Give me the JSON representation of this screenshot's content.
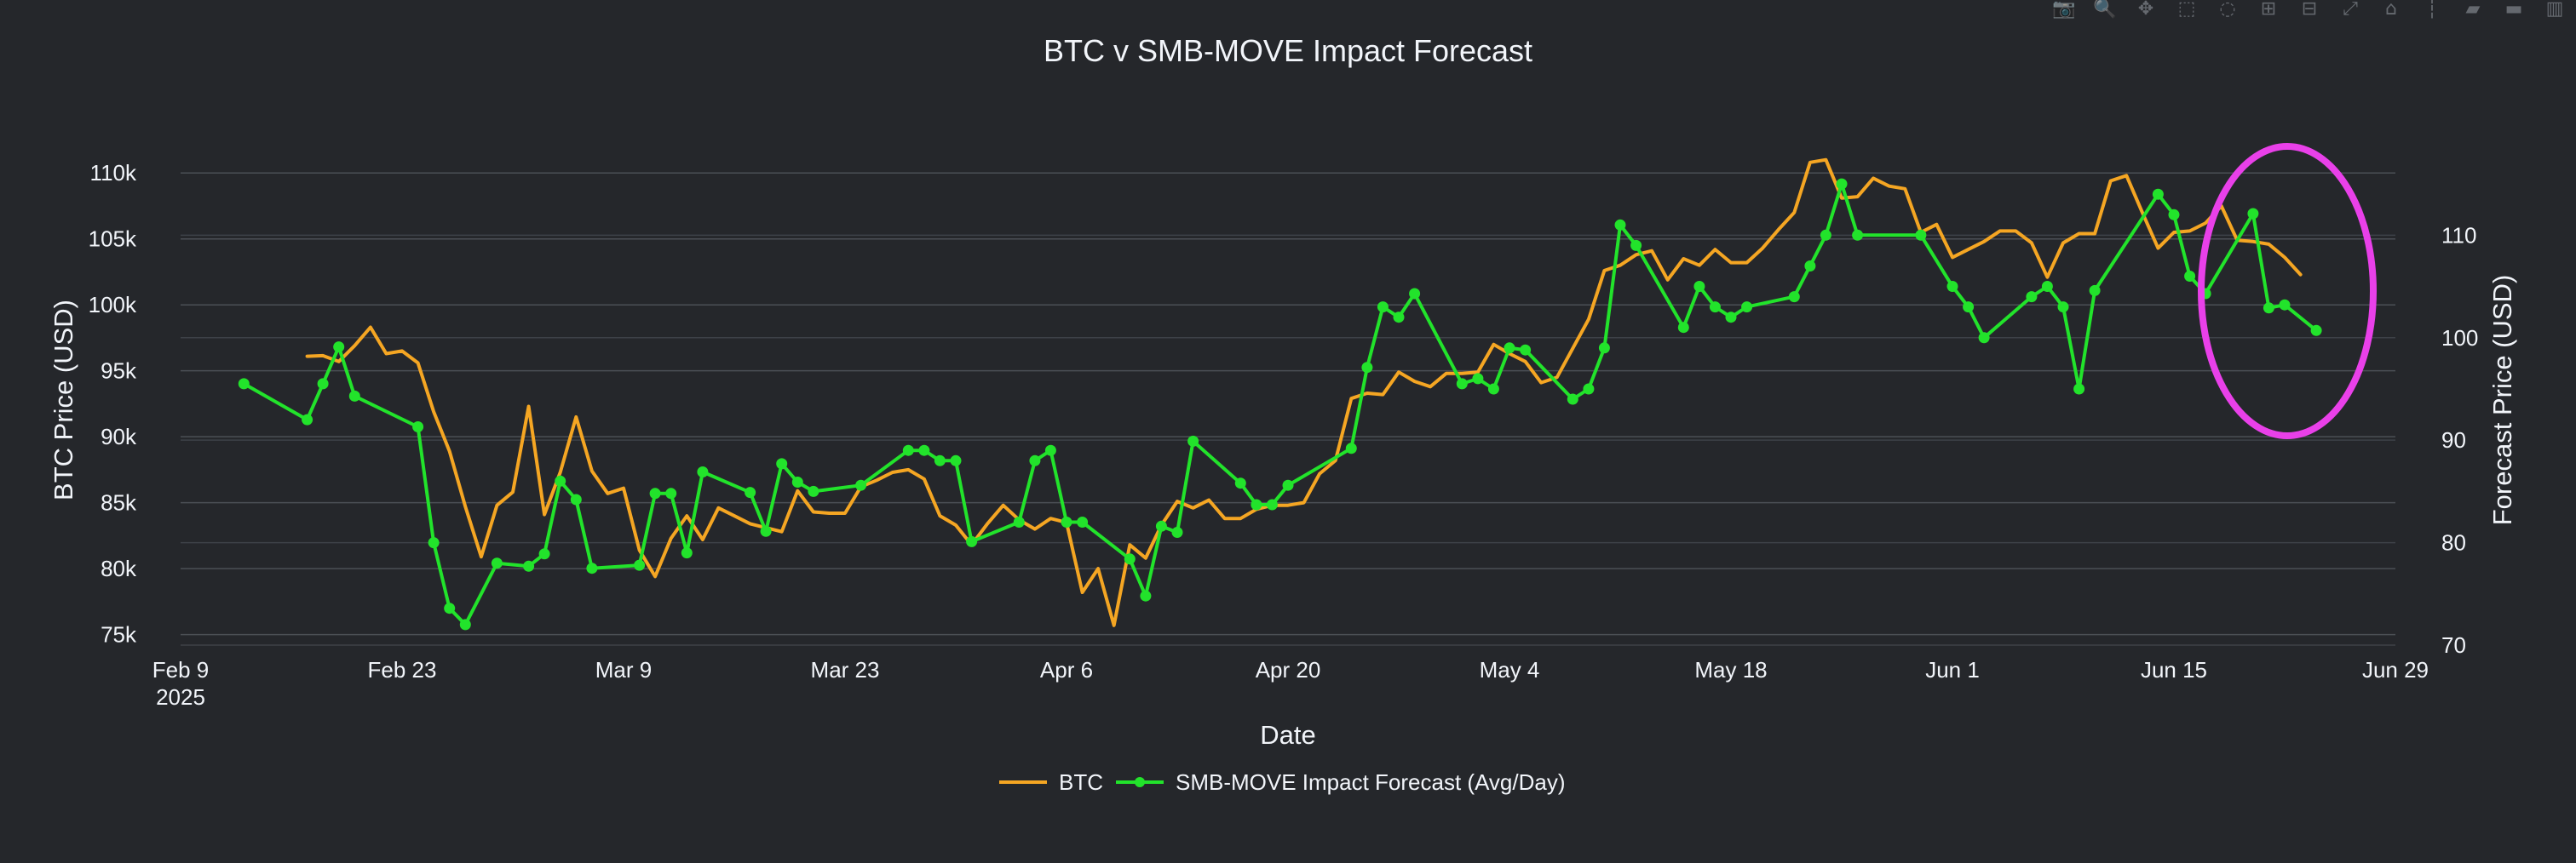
{
  "chart_data": {
    "type": "line",
    "title": "BTC v SMB-MOVE Impact Forecast",
    "xlabel": "Date",
    "ylabel_left": "BTC Price (USD)",
    "ylabel_right": "Forecast Price (USD)",
    "x_range": [
      "2025-02-09",
      "2025-06-29"
    ],
    "x_ticks": [
      {
        "date": "2025-02-09",
        "label": "Feb 9",
        "sublabel": "2025"
      },
      {
        "date": "2025-02-23",
        "label": "Feb 23"
      },
      {
        "date": "2025-03-09",
        "label": "Mar 9"
      },
      {
        "date": "2025-03-23",
        "label": "Mar 23"
      },
      {
        "date": "2025-04-06",
        "label": "Apr 6"
      },
      {
        "date": "2025-04-20",
        "label": "Apr 20"
      },
      {
        "date": "2025-05-04",
        "label": "May 4"
      },
      {
        "date": "2025-05-18",
        "label": "May 18"
      },
      {
        "date": "2025-06-01",
        "label": "Jun 1"
      },
      {
        "date": "2025-06-15",
        "label": "Jun 15"
      },
      {
        "date": "2025-06-29",
        "label": "Jun 29"
      }
    ],
    "y_left_range": [
      74200,
      111500
    ],
    "y_left_ticks": [
      {
        "value": 75000,
        "label": "75k"
      },
      {
        "value": 80000,
        "label": "80k"
      },
      {
        "value": 85000,
        "label": "85k"
      },
      {
        "value": 90000,
        "label": "90k"
      },
      {
        "value": 95000,
        "label": "95k"
      },
      {
        "value": 100000,
        "label": "100k"
      },
      {
        "value": 105000,
        "label": "105k"
      },
      {
        "value": 110000,
        "label": "110k"
      }
    ],
    "y_right_range": [
      70,
      118
    ],
    "y_right_ticks": [
      {
        "value": 70,
        "label": "70"
      },
      {
        "value": 80,
        "label": "80"
      },
      {
        "value": 90,
        "label": "90"
      },
      {
        "value": 100,
        "label": "100"
      },
      {
        "value": 110,
        "label": "110"
      }
    ],
    "grid": true,
    "legend_position": "bottom-center",
    "series": [
      {
        "name": "BTC",
        "axis": "left",
        "mode": "lines",
        "color": "#f5a623",
        "points": [
          [
            "2025-02-17",
            96100
          ],
          [
            "2025-02-18",
            96150
          ],
          [
            "2025-02-19",
            95700
          ],
          [
            "2025-02-20",
            96900
          ],
          [
            "2025-02-21",
            98300
          ],
          [
            "2025-02-22",
            96300
          ],
          [
            "2025-02-23",
            96500
          ],
          [
            "2025-02-24",
            95600
          ],
          [
            "2025-02-25",
            91900
          ],
          [
            "2025-02-26",
            88900
          ],
          [
            "2025-02-27",
            84700
          ],
          [
            "2025-02-28",
            80900
          ],
          [
            "2025-03-01",
            84800
          ],
          [
            "2025-03-02",
            85800
          ],
          [
            "2025-03-03",
            92300
          ],
          [
            "2025-03-04",
            84100
          ],
          [
            "2025-03-05",
            87300
          ],
          [
            "2025-03-06",
            91500
          ],
          [
            "2025-03-07",
            87400
          ],
          [
            "2025-03-08",
            85700
          ],
          [
            "2025-03-09",
            86100
          ],
          [
            "2025-03-10",
            81400
          ],
          [
            "2025-03-11",
            79400
          ],
          [
            "2025-03-12",
            82300
          ],
          [
            "2025-03-13",
            84000
          ],
          [
            "2025-03-14",
            82200
          ],
          [
            "2025-03-15",
            84600
          ],
          [
            "2025-03-16",
            84000
          ],
          [
            "2025-03-17",
            83400
          ],
          [
            "2025-03-18",
            83100
          ],
          [
            "2025-03-19",
            82800
          ],
          [
            "2025-03-20",
            85900
          ],
          [
            "2025-03-21",
            84300
          ],
          [
            "2025-03-22",
            84200
          ],
          [
            "2025-03-23",
            84200
          ],
          [
            "2025-03-24",
            86200
          ],
          [
            "2025-03-25",
            86700
          ],
          [
            "2025-03-26",
            87300
          ],
          [
            "2025-03-27",
            87500
          ],
          [
            "2025-03-28",
            86800
          ],
          [
            "2025-03-29",
            84000
          ],
          [
            "2025-03-30",
            83300
          ],
          [
            "2025-03-31",
            81800
          ],
          [
            "2025-04-01",
            83400
          ],
          [
            "2025-04-02",
            84800
          ],
          [
            "2025-04-03",
            83700
          ],
          [
            "2025-04-04",
            83000
          ],
          [
            "2025-04-05",
            83800
          ],
          [
            "2025-04-06",
            83500
          ],
          [
            "2025-04-07",
            78200
          ],
          [
            "2025-04-08",
            80000
          ],
          [
            "2025-04-09",
            75700
          ],
          [
            "2025-04-10",
            81800
          ],
          [
            "2025-04-11",
            80800
          ],
          [
            "2025-04-12",
            83300
          ],
          [
            "2025-04-13",
            85100
          ],
          [
            "2025-04-14",
            84600
          ],
          [
            "2025-04-15",
            85200
          ],
          [
            "2025-04-16",
            83800
          ],
          [
            "2025-04-17",
            83800
          ],
          [
            "2025-04-18",
            84500
          ],
          [
            "2025-04-19",
            84800
          ],
          [
            "2025-04-20",
            84800
          ],
          [
            "2025-04-21",
            85000
          ],
          [
            "2025-04-22",
            87200
          ],
          [
            "2025-04-23",
            88200
          ],
          [
            "2025-04-24",
            92900
          ],
          [
            "2025-04-25",
            93300
          ],
          [
            "2025-04-26",
            93200
          ],
          [
            "2025-04-27",
            94900
          ],
          [
            "2025-04-28",
            94200
          ],
          [
            "2025-04-29",
            93800
          ],
          [
            "2025-04-30",
            94800
          ],
          [
            "2025-05-01",
            94800
          ],
          [
            "2025-05-02",
            94900
          ],
          [
            "2025-05-03",
            97000
          ],
          [
            "2025-05-04",
            96300
          ],
          [
            "2025-05-05",
            95700
          ],
          [
            "2025-05-06",
            94100
          ],
          [
            "2025-05-07",
            94500
          ],
          [
            "2025-05-08",
            96700
          ],
          [
            "2025-05-09",
            98900
          ],
          [
            "2025-05-10",
            102600
          ],
          [
            "2025-05-11",
            103000
          ],
          [
            "2025-05-12",
            103800
          ],
          [
            "2025-05-13",
            104100
          ],
          [
            "2025-05-14",
            101900
          ],
          [
            "2025-05-15",
            103500
          ],
          [
            "2025-05-16",
            103000
          ],
          [
            "2025-05-17",
            104200
          ],
          [
            "2025-05-18",
            103200
          ],
          [
            "2025-05-19",
            103200
          ],
          [
            "2025-05-20",
            104300
          ],
          [
            "2025-05-21",
            105700
          ],
          [
            "2025-05-22",
            107000
          ],
          [
            "2025-05-23",
            110800
          ],
          [
            "2025-05-24",
            111000
          ],
          [
            "2025-05-25",
            108100
          ],
          [
            "2025-05-26",
            108200
          ],
          [
            "2025-05-27",
            109600
          ],
          [
            "2025-05-28",
            109000
          ],
          [
            "2025-05-29",
            108800
          ],
          [
            "2025-05-30",
            105500
          ],
          [
            "2025-05-31",
            106100
          ],
          [
            "2025-06-01",
            103600
          ],
          [
            "2025-06-02",
            104200
          ],
          [
            "2025-06-03",
            104800
          ],
          [
            "2025-06-04",
            105600
          ],
          [
            "2025-06-05",
            105600
          ],
          [
            "2025-06-06",
            104700
          ],
          [
            "2025-06-07",
            102100
          ],
          [
            "2025-06-08",
            104700
          ],
          [
            "2025-06-09",
            105400
          ],
          [
            "2025-06-10",
            105400
          ],
          [
            "2025-06-11",
            109400
          ],
          [
            "2025-06-12",
            109800
          ],
          [
            "2025-06-13",
            107000
          ],
          [
            "2025-06-14",
            104300
          ],
          [
            "2025-06-15",
            105500
          ],
          [
            "2025-06-16",
            105600
          ],
          [
            "2025-06-17",
            106200
          ],
          [
            "2025-06-18",
            107500
          ],
          [
            "2025-06-19",
            104900
          ],
          [
            "2025-06-20",
            104800
          ],
          [
            "2025-06-21",
            104600
          ],
          [
            "2025-06-22",
            103600
          ],
          [
            "2025-06-23",
            102300
          ]
        ]
      },
      {
        "name": "SMB-MOVE Impact Forecast (Avg/Day)",
        "axis": "right",
        "mode": "lines+markers",
        "color": "#22e32b",
        "points": [
          [
            "2025-02-13",
            95.5
          ],
          [
            "2025-02-17",
            92.0
          ],
          [
            "2025-02-18",
            95.5
          ],
          [
            "2025-02-19",
            99.1
          ],
          [
            "2025-02-20",
            94.3
          ],
          [
            "2025-02-24",
            91.3
          ],
          [
            "2025-02-25",
            80.0
          ],
          [
            "2025-02-26",
            73.6
          ],
          [
            "2025-02-27",
            72.0
          ],
          [
            "2025-03-01",
            78.0
          ],
          [
            "2025-03-03",
            77.7
          ],
          [
            "2025-03-04",
            78.9
          ],
          [
            "2025-03-05",
            86.0
          ],
          [
            "2025-03-06",
            84.2
          ],
          [
            "2025-03-07",
            77.5
          ],
          [
            "2025-03-10",
            77.8
          ],
          [
            "2025-03-11",
            84.8
          ],
          [
            "2025-03-12",
            84.8
          ],
          [
            "2025-03-13",
            79.0
          ],
          [
            "2025-03-14",
            86.9
          ],
          [
            "2025-03-17",
            84.9
          ],
          [
            "2025-03-18",
            81.1
          ],
          [
            "2025-03-19",
            87.7
          ],
          [
            "2025-03-20",
            85.9
          ],
          [
            "2025-03-21",
            85.0
          ],
          [
            "2025-03-24",
            85.6
          ],
          [
            "2025-03-27",
            89.0
          ],
          [
            "2025-03-28",
            89.0
          ],
          [
            "2025-03-29",
            88.0
          ],
          [
            "2025-03-30",
            88.0
          ],
          [
            "2025-03-31",
            80.1
          ],
          [
            "2025-04-03",
            82.0
          ],
          [
            "2025-04-04",
            88.0
          ],
          [
            "2025-04-05",
            89.0
          ],
          [
            "2025-04-06",
            82.0
          ],
          [
            "2025-04-07",
            82.0
          ],
          [
            "2025-04-10",
            78.4
          ],
          [
            "2025-04-11",
            74.8
          ],
          [
            "2025-04-12",
            81.6
          ],
          [
            "2025-04-13",
            81.0
          ],
          [
            "2025-04-14",
            89.9
          ],
          [
            "2025-04-17",
            85.8
          ],
          [
            "2025-04-18",
            83.7
          ],
          [
            "2025-04-19",
            83.7
          ],
          [
            "2025-04-20",
            85.6
          ],
          [
            "2025-04-24",
            89.2
          ],
          [
            "2025-04-25",
            97.1
          ],
          [
            "2025-04-26",
            103.0
          ],
          [
            "2025-04-27",
            102.0
          ],
          [
            "2025-04-28",
            104.3
          ],
          [
            "2025-05-01",
            95.5
          ],
          [
            "2025-05-02",
            96.0
          ],
          [
            "2025-05-03",
            95.0
          ],
          [
            "2025-05-04",
            99.0
          ],
          [
            "2025-05-05",
            98.8
          ],
          [
            "2025-05-08",
            94.0
          ],
          [
            "2025-05-09",
            95.0
          ],
          [
            "2025-05-10",
            99.0
          ],
          [
            "2025-05-11",
            111.0
          ],
          [
            "2025-05-12",
            109.0
          ],
          [
            "2025-05-15",
            101.0
          ],
          [
            "2025-05-16",
            105.0
          ],
          [
            "2025-05-17",
            103.0
          ],
          [
            "2025-05-18",
            102.0
          ],
          [
            "2025-05-19",
            103.0
          ],
          [
            "2025-05-22",
            104.0
          ],
          [
            "2025-05-23",
            107.0
          ],
          [
            "2025-05-24",
            110.0
          ],
          [
            "2025-05-25",
            115.0
          ],
          [
            "2025-05-26",
            110.0
          ],
          [
            "2025-05-30",
            110.0
          ],
          [
            "2025-06-01",
            105.0
          ],
          [
            "2025-06-02",
            103.0
          ],
          [
            "2025-06-03",
            100.0
          ],
          [
            "2025-06-06",
            104.0
          ],
          [
            "2025-06-07",
            105.0
          ],
          [
            "2025-06-08",
            103.0
          ],
          [
            "2025-06-09",
            95.0
          ],
          [
            "2025-06-10",
            104.6
          ],
          [
            "2025-06-14",
            114.0
          ],
          [
            "2025-06-15",
            112.0
          ],
          [
            "2025-06-16",
            106.0
          ],
          [
            "2025-06-17",
            104.3
          ],
          [
            "2025-06-20",
            112.1
          ],
          [
            "2025-06-21",
            102.9
          ],
          [
            "2025-06-22",
            103.2
          ],
          [
            "2025-06-24",
            100.7
          ]
        ]
      }
    ],
    "annotation": {
      "shape": "ellipse",
      "color": "#e940e9",
      "note": ""
    }
  },
  "modebar": {
    "buttons": [
      {
        "name": "camera-icon",
        "glyph": "📷"
      },
      {
        "name": "zoom-icon",
        "glyph": "🔍"
      },
      {
        "name": "pan-icon",
        "glyph": "✥"
      },
      {
        "name": "box-select-icon",
        "glyph": "⬚"
      },
      {
        "name": "lasso-select-icon",
        "glyph": "◌"
      },
      {
        "name": "zoom-in-icon",
        "glyph": "⊞"
      },
      {
        "name": "zoom-out-icon",
        "glyph": "⊟"
      },
      {
        "name": "autoscale-icon",
        "glyph": "⤢"
      },
      {
        "name": "home-icon",
        "glyph": "⌂"
      },
      {
        "name": "spike-lines-icon",
        "glyph": "┆"
      },
      {
        "name": "hover-closest-icon",
        "glyph": "▰"
      },
      {
        "name": "hover-compare-icon",
        "glyph": "▬"
      },
      {
        "name": "plotly-logo-icon",
        "glyph": "▥"
      }
    ]
  }
}
